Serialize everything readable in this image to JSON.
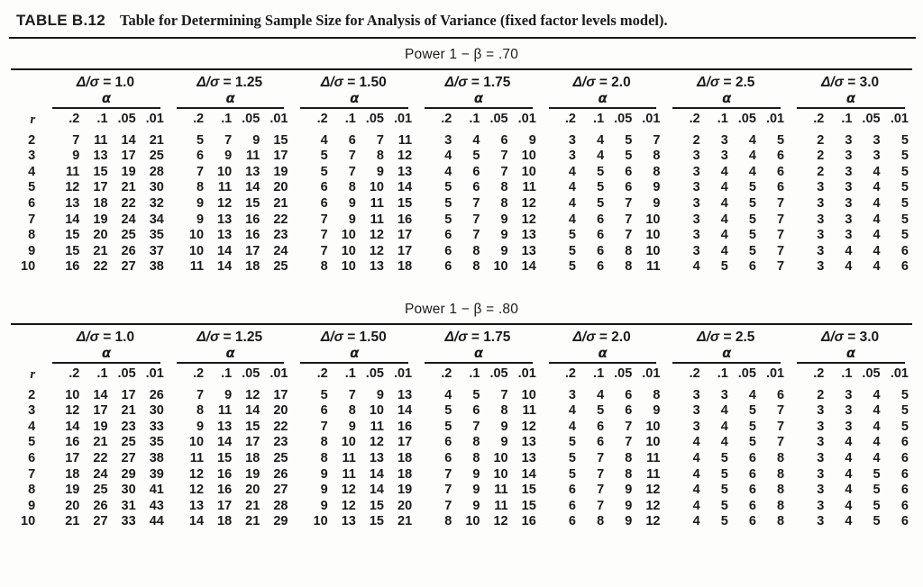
{
  "title": {
    "label": "TABLE B.12",
    "text": "Table for Determining Sample Size for Analysis of Variance (fixed factor levels model)."
  },
  "tables": [
    {
      "power_label": "Power 1 − β = .70",
      "row_header": "r",
      "alpha_label": "α",
      "group_labels": [
        "Δ/σ = 1.0",
        "Δ/σ = 1.25",
        "Δ/σ = 1.50",
        "Δ/σ = 1.75",
        "Δ/σ = 2.0",
        "Δ/σ = 2.5",
        "Δ/σ = 3.0"
      ],
      "alpha_levels": [
        ".2",
        ".1",
        ".05",
        ".01"
      ],
      "rows": [
        {
          "r": 2,
          "values": [
            7,
            11,
            14,
            21,
            5,
            7,
            9,
            15,
            4,
            6,
            7,
            11,
            3,
            4,
            6,
            9,
            3,
            4,
            5,
            7,
            2,
            3,
            4,
            5,
            2,
            3,
            3,
            5
          ]
        },
        {
          "r": 3,
          "values": [
            9,
            13,
            17,
            25,
            6,
            9,
            11,
            17,
            5,
            7,
            8,
            12,
            4,
            5,
            7,
            10,
            3,
            4,
            5,
            8,
            3,
            3,
            4,
            6,
            2,
            3,
            3,
            5
          ]
        },
        {
          "r": 4,
          "values": [
            11,
            15,
            19,
            28,
            7,
            10,
            13,
            19,
            5,
            7,
            9,
            13,
            4,
            6,
            7,
            10,
            4,
            5,
            6,
            8,
            3,
            4,
            4,
            6,
            2,
            3,
            4,
            5
          ]
        },
        {
          "r": 5,
          "values": [
            12,
            17,
            21,
            30,
            8,
            11,
            14,
            20,
            6,
            8,
            10,
            14,
            5,
            6,
            8,
            11,
            4,
            5,
            6,
            9,
            3,
            4,
            5,
            6,
            3,
            3,
            4,
            5
          ]
        },
        {
          "r": 6,
          "values": [
            13,
            18,
            22,
            32,
            9,
            12,
            15,
            21,
            6,
            9,
            11,
            15,
            5,
            7,
            8,
            12,
            4,
            5,
            7,
            9,
            3,
            4,
            5,
            7,
            3,
            3,
            4,
            5
          ]
        },
        {
          "r": 7,
          "values": [
            14,
            19,
            24,
            34,
            9,
            13,
            16,
            22,
            7,
            9,
            11,
            16,
            5,
            7,
            9,
            12,
            4,
            6,
            7,
            10,
            3,
            4,
            5,
            7,
            3,
            3,
            4,
            5
          ]
        },
        {
          "r": 8,
          "values": [
            15,
            20,
            25,
            35,
            10,
            13,
            16,
            23,
            7,
            10,
            12,
            17,
            6,
            7,
            9,
            13,
            5,
            6,
            7,
            10,
            3,
            4,
            5,
            7,
            3,
            3,
            4,
            5
          ]
        },
        {
          "r": 9,
          "values": [
            15,
            21,
            26,
            37,
            10,
            14,
            17,
            24,
            7,
            10,
            12,
            17,
            6,
            8,
            9,
            13,
            5,
            6,
            8,
            10,
            3,
            4,
            5,
            7,
            3,
            4,
            4,
            6
          ]
        },
        {
          "r": 10,
          "values": [
            16,
            22,
            27,
            38,
            11,
            14,
            18,
            25,
            8,
            10,
            13,
            18,
            6,
            8,
            10,
            14,
            5,
            6,
            8,
            11,
            4,
            5,
            6,
            7,
            3,
            4,
            4,
            6
          ]
        }
      ]
    },
    {
      "power_label": "Power 1 − β = .80",
      "row_header": "r",
      "alpha_label": "α",
      "group_labels": [
        "Δ/σ = 1.0",
        "Δ/σ = 1.25",
        "Δ/σ = 1.50",
        "Δ/σ = 1.75",
        "Δ/σ = 2.0",
        "Δ/σ = 2.5",
        "Δ/σ = 3.0"
      ],
      "alpha_levels": [
        ".2",
        ".1",
        ".05",
        ".01"
      ],
      "rows": [
        {
          "r": 2,
          "values": [
            10,
            14,
            17,
            26,
            7,
            9,
            12,
            17,
            5,
            7,
            9,
            13,
            4,
            5,
            7,
            10,
            3,
            4,
            6,
            8,
            3,
            3,
            4,
            6,
            2,
            3,
            4,
            5
          ]
        },
        {
          "r": 3,
          "values": [
            12,
            17,
            21,
            30,
            8,
            11,
            14,
            20,
            6,
            8,
            10,
            14,
            5,
            6,
            8,
            11,
            4,
            5,
            6,
            9,
            3,
            4,
            5,
            7,
            3,
            3,
            4,
            5
          ]
        },
        {
          "r": 4,
          "values": [
            14,
            19,
            23,
            33,
            9,
            13,
            15,
            22,
            7,
            9,
            11,
            16,
            5,
            7,
            9,
            12,
            4,
            6,
            7,
            10,
            3,
            4,
            5,
            7,
            3,
            3,
            4,
            5
          ]
        },
        {
          "r": 5,
          "values": [
            16,
            21,
            25,
            35,
            10,
            14,
            17,
            23,
            8,
            10,
            12,
            17,
            6,
            8,
            9,
            13,
            5,
            6,
            7,
            10,
            4,
            4,
            5,
            7,
            3,
            4,
            4,
            6
          ]
        },
        {
          "r": 6,
          "values": [
            17,
            22,
            27,
            38,
            11,
            15,
            18,
            25,
            8,
            11,
            13,
            18,
            6,
            8,
            10,
            13,
            5,
            7,
            8,
            11,
            4,
            5,
            6,
            8,
            3,
            4,
            4,
            6
          ]
        },
        {
          "r": 7,
          "values": [
            18,
            24,
            29,
            39,
            12,
            16,
            19,
            26,
            9,
            11,
            14,
            18,
            7,
            9,
            10,
            14,
            5,
            7,
            8,
            11,
            4,
            5,
            6,
            8,
            3,
            4,
            5,
            6
          ]
        },
        {
          "r": 8,
          "values": [
            19,
            25,
            30,
            41,
            12,
            16,
            20,
            27,
            9,
            12,
            14,
            19,
            7,
            9,
            11,
            15,
            6,
            7,
            9,
            12,
            4,
            5,
            6,
            8,
            3,
            4,
            5,
            6
          ]
        },
        {
          "r": 9,
          "values": [
            20,
            26,
            31,
            43,
            13,
            17,
            21,
            28,
            9,
            12,
            15,
            20,
            7,
            9,
            11,
            15,
            6,
            7,
            9,
            12,
            4,
            5,
            6,
            8,
            3,
            4,
            5,
            6
          ]
        },
        {
          "r": 10,
          "values": [
            21,
            27,
            33,
            44,
            14,
            18,
            21,
            29,
            10,
            13,
            15,
            21,
            8,
            10,
            12,
            16,
            6,
            8,
            9,
            12,
            4,
            5,
            6,
            8,
            3,
            4,
            5,
            6
          ]
        }
      ]
    }
  ]
}
